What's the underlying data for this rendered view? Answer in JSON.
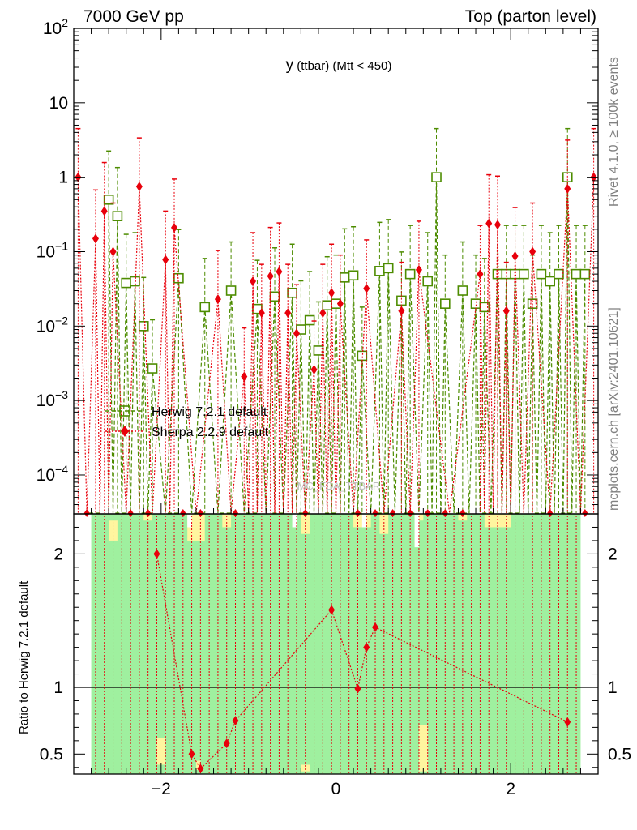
{
  "header": {
    "energy": "7000 GeV pp",
    "process": "Top (parton level)"
  },
  "side_text": {
    "rivet": "Rivet 4.1.0, ≥ 100k events",
    "mcplots": "mcplots.cern.ch [arXiv:2401.10621]"
  },
  "chart_data": [
    {
      "type": "scatter",
      "title": "y (ttbar) (Mtt < 450)",
      "title_main": "y",
      "title_rest": " (ttbar) (Mtt < 450)",
      "watermark": "MC_FBA_TTBAR",
      "yscale": "log",
      "xlim": [
        -3.0,
        3.0
      ],
      "ylim": [
        3e-05,
        100
      ],
      "x_ticks": [
        -2,
        0,
        2
      ],
      "x_tick_labels": [
        "−2",
        "0",
        "2"
      ],
      "y_tick_labels": [
        {
          "value": 100,
          "mant": "10",
          "exp": "2"
        },
        {
          "value": 10,
          "mant": "10",
          "exp": ""
        },
        {
          "value": 1,
          "mant": "1",
          "exp": ""
        },
        {
          "value": 0.1,
          "mant": "10",
          "exp": "−1"
        },
        {
          "value": 0.01,
          "mant": "10",
          "exp": "−2"
        },
        {
          "value": 0.001,
          "mant": "10",
          "exp": "−3"
        },
        {
          "value": 0.0001,
          "mant": "10",
          "exp": "−4"
        }
      ],
      "legend_position": "middle-left",
      "series": [
        {
          "name": "Herwig 7.2.1 default",
          "color": "#4d8c00",
          "marker": "open-square",
          "line": "dashed",
          "x": [
            -2.6,
            -2.5,
            -2.4,
            -2.3,
            -2.2,
            -2.1,
            -1.8,
            -1.5,
            -1.2,
            -0.9,
            -0.7,
            -0.5,
            -0.4,
            -0.3,
            -0.2,
            -0.1,
            0,
            0.1,
            0.2,
            0.3,
            0.5,
            0.6,
            0.75,
            0.85,
            1.05,
            1.15,
            1.25,
            1.45,
            1.6,
            1.7,
            1.85,
            1.95,
            2.05,
            2.15,
            2.25,
            2.35,
            2.45,
            2.55,
            2.65,
            2.75,
            2.85
          ],
          "values": [
            0.5,
            0.3,
            0.038,
            0.04,
            0.01,
            0.0027,
            0.044,
            0.018,
            0.03,
            0.017,
            0.025,
            0.028,
            0.009,
            0.012,
            0.0047,
            0.019,
            0.02,
            0.045,
            0.048,
            0.004,
            0.055,
            0.06,
            0.022,
            0.05,
            0.04,
            1.0,
            0.02,
            0.03,
            0.02,
            0.018,
            0.05,
            0.05,
            0.05,
            0.05,
            0.02,
            0.05,
            0.04,
            0.05,
            1.0,
            0.05,
            0.05
          ]
        },
        {
          "name": "Sherpa 2.2.9 default",
          "color": "#e8000b",
          "marker": "filled-diamond",
          "line": "dotted",
          "x": [
            -2.95,
            -2.75,
            -2.65,
            -2.55,
            -2.25,
            -1.95,
            -1.85,
            -1.35,
            -1.05,
            -0.95,
            -0.85,
            -0.75,
            -0.65,
            -0.55,
            -0.45,
            -0.25,
            -0.15,
            -0.05,
            0.05,
            0.35,
            0.75,
            0.95,
            1.65,
            1.75,
            1.85,
            1.95,
            2.05,
            2.25,
            2.65,
            2.95
          ],
          "values": [
            1.0,
            0.15,
            0.35,
            0.1,
            0.75,
            0.078,
            0.21,
            0.023,
            0.0021,
            0.04,
            0.015,
            0.047,
            0.054,
            0.015,
            0.008,
            0.0026,
            0.015,
            0.028,
            0.02,
            0.032,
            0.016,
            0.057,
            0.05,
            0.24,
            0.23,
            0.016,
            0.087,
            0.1,
            0.7,
            1.0
          ]
        }
      ]
    },
    {
      "type": "scatter",
      "title": "Ratio to Herwig 7.2.1 default",
      "ylabel": "Ratio to Herwig 7.2.1 default",
      "xlim": [
        -3.0,
        3.0
      ],
      "ylim": [
        0.35,
        2.3
      ],
      "x_ticks": [
        -2,
        0,
        2
      ],
      "x_tick_labels": [
        "−2",
        "0",
        "2"
      ],
      "y_ticks": [
        0.5,
        1,
        2
      ],
      "y_tick_labels": [
        "0.5",
        "1",
        "2"
      ],
      "band_colors": {
        "one_sigma": "#9ff09f",
        "two_sigma": "#fff59f"
      },
      "series": [
        {
          "name": "Sherpa 2.2.9 default / Herwig 7.2.1 default",
          "color": "#e8000b",
          "marker": "filled-diamond",
          "x": [
            -2.05,
            -1.65,
            -1.55,
            -1.25,
            -1.15,
            -0.05,
            0.25,
            0.35,
            0.45,
            2.65
          ],
          "values": [
            2.0,
            0.5,
            0.39,
            0.58,
            0.75,
            1.58,
            0.99,
            1.3,
            1.45,
            0.74
          ]
        }
      ]
    }
  ]
}
